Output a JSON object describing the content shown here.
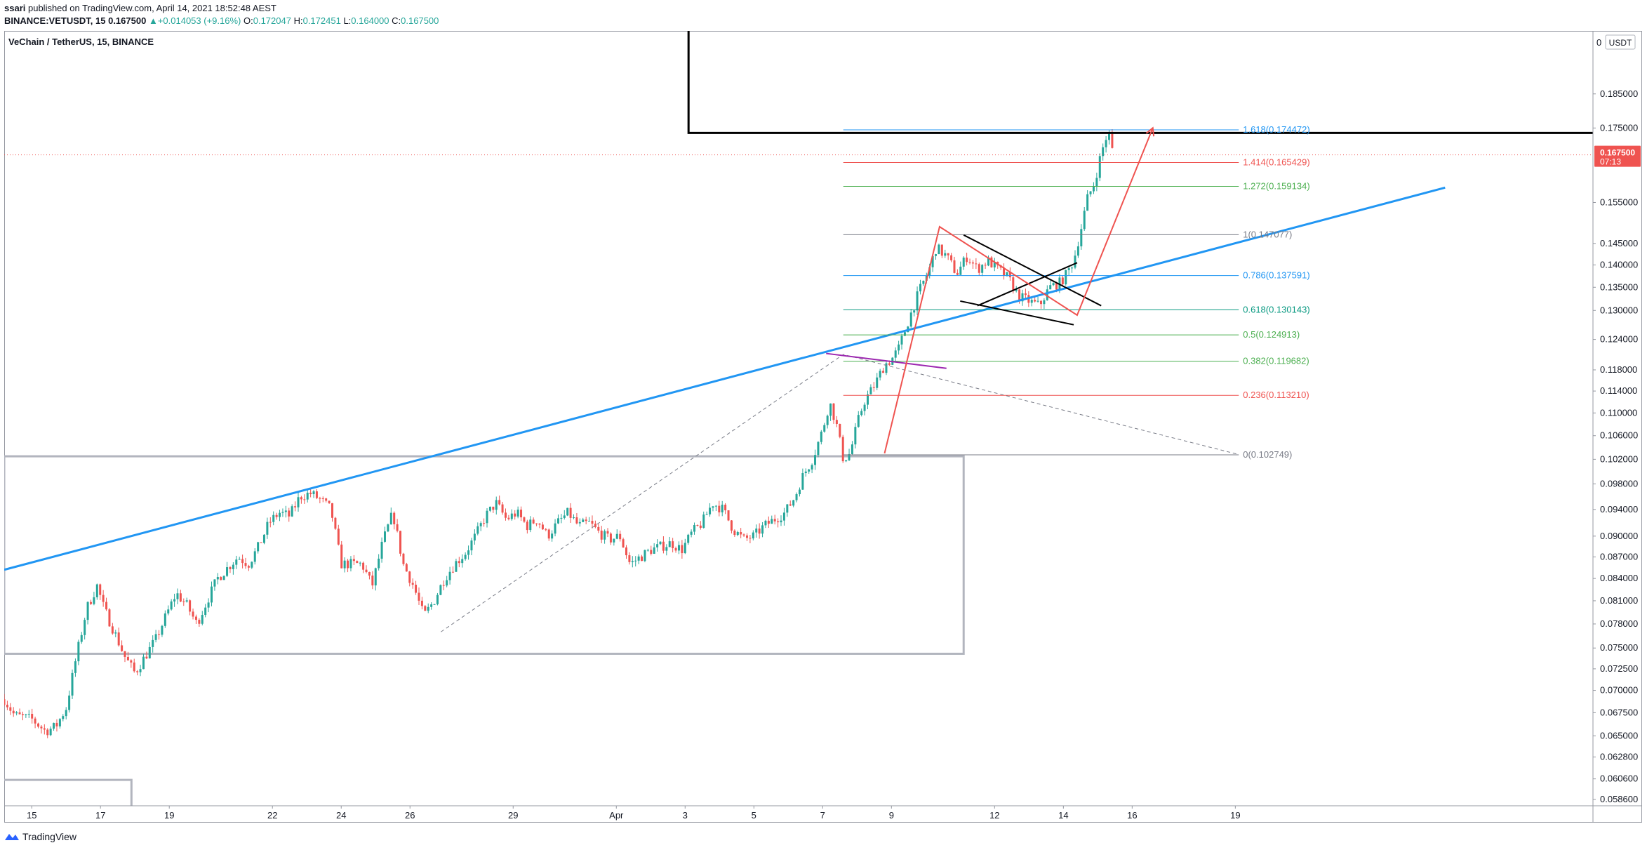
{
  "header": {
    "publisher": "ssari",
    "published_text": " published on TradingView.com, April 14, 2021 18:52:48 AEST"
  },
  "ohlc": {
    "symbol": "BINANCE:VETUSDT, 15",
    "price": "0.167500",
    "change": "+0.014053 (+9.16%)",
    "o_label": "O:",
    "o": "0.172047",
    "h_label": "H:",
    "h": "0.172451",
    "l_label": "L:",
    "l": "0.164000",
    "c_label": "C:",
    "c": "0.167500"
  },
  "footer": {
    "brand": "TradingView"
  },
  "colors": {
    "up": "#26a69a",
    "down": "#ef5350",
    "trend_blue": "#2196f3",
    "fib_blue": "#2196f3",
    "fib_red": "#ef5350",
    "fib_green": "#4caf50",
    "fib_teal": "#089981",
    "fib_gray": "#787b86",
    "purple": "#9c27b0"
  },
  "chart_data": {
    "type": "candlestick",
    "title": "VeChain / TetherUS, 15, BINANCE",
    "scale": "log",
    "currency_label": "USDT",
    "last_price_label": "0.167500",
    "countdown_label": "07:13",
    "y_ticks": [
      "0.185000",
      "0.175000",
      "0.155000",
      "0.145000",
      "0.140000",
      "0.135000",
      "0.130000",
      "0.124000",
      "0.118000",
      "0.114000",
      "0.110000",
      "0.106000",
      "0.102000",
      "0.098000",
      "0.094000",
      "0.090000",
      "0.087000",
      "0.084000",
      "0.081000",
      "0.078000",
      "0.075000",
      "0.072500",
      "0.070000",
      "0.067500",
      "0.065000",
      "0.062800",
      "0.060600",
      "0.058600"
    ],
    "y_tick_values": [
      0.185,
      0.175,
      0.155,
      0.145,
      0.14,
      0.135,
      0.13,
      0.124,
      0.118,
      0.114,
      0.11,
      0.106,
      0.102,
      0.098,
      0.094,
      0.09,
      0.087,
      0.084,
      0.081,
      0.078,
      0.075,
      0.0725,
      0.07,
      0.0675,
      0.065,
      0.0628,
      0.0606,
      0.0586
    ],
    "top_tick_label": "0",
    "ylim": [
      0.058,
      0.205
    ],
    "x_ticks": [
      "15",
      "17",
      "19",
      "22",
      "24",
      "26",
      "29",
      "Apr",
      "3",
      "5",
      "7",
      "9",
      "12",
      "14",
      "16",
      "19"
    ],
    "x_tick_days": [
      0,
      2,
      4,
      7,
      9,
      11,
      14,
      17,
      19,
      21,
      23,
      25,
      28,
      30,
      32,
      35
    ],
    "x_note": "x in days since Mar 15, 2021 00:00",
    "xlim": [
      -0.8,
      45.4
    ],
    "price_path": [
      [
        -0.8,
        0.069
      ],
      [
        -0.5,
        0.0672
      ],
      [
        0.0,
        0.0668
      ],
      [
        0.4,
        0.0655
      ],
      [
        0.7,
        0.066
      ],
      [
        1.0,
        0.068
      ],
      [
        1.3,
        0.074
      ],
      [
        1.6,
        0.08
      ],
      [
        1.9,
        0.083
      ],
      [
        2.1,
        0.08
      ],
      [
        2.4,
        0.077
      ],
      [
        2.7,
        0.074
      ],
      [
        3.0,
        0.072
      ],
      [
        3.3,
        0.074
      ],
      [
        3.6,
        0.076
      ],
      [
        3.9,
        0.079
      ],
      [
        4.2,
        0.082
      ],
      [
        4.5,
        0.0805
      ],
      [
        4.8,
        0.078
      ],
      [
        5.1,
        0.081
      ],
      [
        5.4,
        0.084
      ],
      [
        5.7,
        0.0855
      ],
      [
        6.0,
        0.087
      ],
      [
        6.3,
        0.086
      ],
      [
        6.6,
        0.0885
      ],
      [
        6.9,
        0.092
      ],
      [
        7.2,
        0.0935
      ],
      [
        7.5,
        0.093
      ],
      [
        7.8,
        0.096
      ],
      [
        8.1,
        0.0965
      ],
      [
        8.4,
        0.0955
      ],
      [
        8.7,
        0.094
      ],
      [
        9.0,
        0.086
      ],
      [
        9.3,
        0.086
      ],
      [
        9.6,
        0.086
      ],
      [
        9.9,
        0.083
      ],
      [
        10.2,
        0.089
      ],
      [
        10.5,
        0.0935
      ],
      [
        10.8,
        0.086
      ],
      [
        11.1,
        0.083
      ],
      [
        11.4,
        0.079
      ],
      [
        11.7,
        0.081
      ],
      [
        12.0,
        0.084
      ],
      [
        12.3,
        0.086
      ],
      [
        12.6,
        0.0875
      ],
      [
        12.9,
        0.09
      ],
      [
        13.2,
        0.093
      ],
      [
        13.5,
        0.095
      ],
      [
        13.8,
        0.0925
      ],
      [
        14.1,
        0.0935
      ],
      [
        14.4,
        0.0915
      ],
      [
        14.7,
        0.0925
      ],
      [
        15.0,
        0.09
      ],
      [
        15.3,
        0.092
      ],
      [
        15.6,
        0.0935
      ],
      [
        15.9,
        0.0915
      ],
      [
        16.2,
        0.092
      ],
      [
        16.5,
        0.0905
      ],
      [
        16.8,
        0.0895
      ],
      [
        17.1,
        0.09
      ],
      [
        17.4,
        0.086
      ],
      [
        17.7,
        0.087
      ],
      [
        18.0,
        0.088
      ],
      [
        18.3,
        0.0885
      ],
      [
        18.6,
        0.089
      ],
      [
        18.9,
        0.088
      ],
      [
        19.2,
        0.0905
      ],
      [
        19.5,
        0.092
      ],
      [
        19.8,
        0.095
      ],
      [
        20.1,
        0.094
      ],
      [
        20.4,
        0.091
      ],
      [
        20.7,
        0.0895
      ],
      [
        21.0,
        0.09
      ],
      [
        21.3,
        0.0915
      ],
      [
        21.6,
        0.0925
      ],
      [
        21.9,
        0.0935
      ],
      [
        22.2,
        0.096
      ],
      [
        22.4,
        0.099
      ],
      [
        22.7,
        0.102
      ],
      [
        23.0,
        0.107
      ],
      [
        23.2,
        0.112
      ],
      [
        23.4,
        0.108
      ],
      [
        23.6,
        0.102
      ],
      [
        23.8,
        0.103
      ],
      [
        24.0,
        0.108
      ],
      [
        24.2,
        0.112
      ],
      [
        24.5,
        0.115
      ],
      [
        24.8,
        0.119
      ],
      [
        25.0,
        0.12
      ],
      [
        25.2,
        0.122
      ],
      [
        25.5,
        0.128
      ],
      [
        25.8,
        0.134
      ],
      [
        26.1,
        0.139
      ],
      [
        26.3,
        0.144
      ],
      [
        26.6,
        0.142
      ],
      [
        26.9,
        0.138
      ],
      [
        27.2,
        0.142
      ],
      [
        27.5,
        0.139
      ],
      [
        27.8,
        0.141
      ],
      [
        28.1,
        0.139
      ],
      [
        28.4,
        0.137
      ],
      [
        28.7,
        0.133
      ],
      [
        29.0,
        0.132
      ],
      [
        29.3,
        0.131
      ],
      [
        29.6,
        0.135
      ],
      [
        29.9,
        0.136
      ],
      [
        30.1,
        0.138
      ],
      [
        30.3,
        0.141
      ],
      [
        30.5,
        0.148
      ],
      [
        30.7,
        0.156
      ],
      [
        30.9,
        0.16
      ],
      [
        31.1,
        0.168
      ],
      [
        31.3,
        0.174
      ],
      [
        31.45,
        0.1675
      ]
    ],
    "trendline_blue": {
      "x1": -0.8,
      "y1": 0.0852,
      "x2": 41.1,
      "y2": 0.1588
    },
    "resistance_black": {
      "x_start": 19.1,
      "y_top": 0.205,
      "y_level": 0.1736,
      "x_end": 45.4
    },
    "support_box": {
      "x1": -0.8,
      "x2": 27.1,
      "y_top": 0.1025,
      "y_bottom": 0.0743
    },
    "lower_box": {
      "x1": -0.8,
      "x2": 2.9,
      "y_top": 0.0605
    },
    "fib_retracement": {
      "x1": 23.6,
      "x2": 35.1,
      "levels": [
        {
          "label": "1.618(0.174472)",
          "ratio": "1.618",
          "value": 0.174472,
          "color": "blue"
        },
        {
          "label": "1.414(0.165429)",
          "ratio": "1.414",
          "value": 0.165429,
          "color": "red"
        },
        {
          "label": "1.272(0.159134)",
          "ratio": "1.272",
          "value": 0.159134,
          "color": "green"
        },
        {
          "label": "1(0.147077)",
          "ratio": "1",
          "value": 0.147077,
          "color": "gray"
        },
        {
          "label": "0.786(0.137591)",
          "ratio": "0.786",
          "value": 0.137591,
          "color": "blue"
        },
        {
          "label": "0.618(0.130143)",
          "ratio": "0.618",
          "value": 0.130143,
          "color": "teal"
        },
        {
          "label": "0.5(0.124913)",
          "ratio": "0.5",
          "value": 0.124913,
          "color": "green"
        },
        {
          "label": "0.382(0.119682)",
          "ratio": "0.382",
          "value": 0.119682,
          "color": "green"
        },
        {
          "label": "0.236(0.113210)",
          "ratio": "0.236",
          "value": 0.11321,
          "color": "red"
        },
        {
          "label": "0(0.102749)",
          "ratio": "0",
          "value": 0.102749,
          "color": "gray"
        }
      ]
    },
    "fib_diagonal_dashed": [
      [
        11.9,
        0.077
      ],
      [
        23.6,
        0.121
      ],
      [
        35.1,
        0.1028
      ]
    ],
    "purple_line": {
      "x1": 23.1,
      "y1": 0.1212,
      "x2": 26.6,
      "y2": 0.1183
    },
    "red_projection": [
      [
        24.8,
        0.103
      ],
      [
        26.4,
        0.149
      ],
      [
        30.4,
        0.129
      ],
      [
        32.6,
        0.175
      ]
    ],
    "flag_upper": {
      "x1": 27.1,
      "y1": 0.147,
      "x2": 31.1,
      "y2": 0.131
    },
    "flag_lower": {
      "x1": 27.0,
      "y1": 0.132,
      "x2": 30.3,
      "y2": 0.127
    },
    "flag_diagonal": {
      "x1": 27.5,
      "y1": 0.131,
      "x2": 30.4,
      "y2": 0.1405
    }
  }
}
